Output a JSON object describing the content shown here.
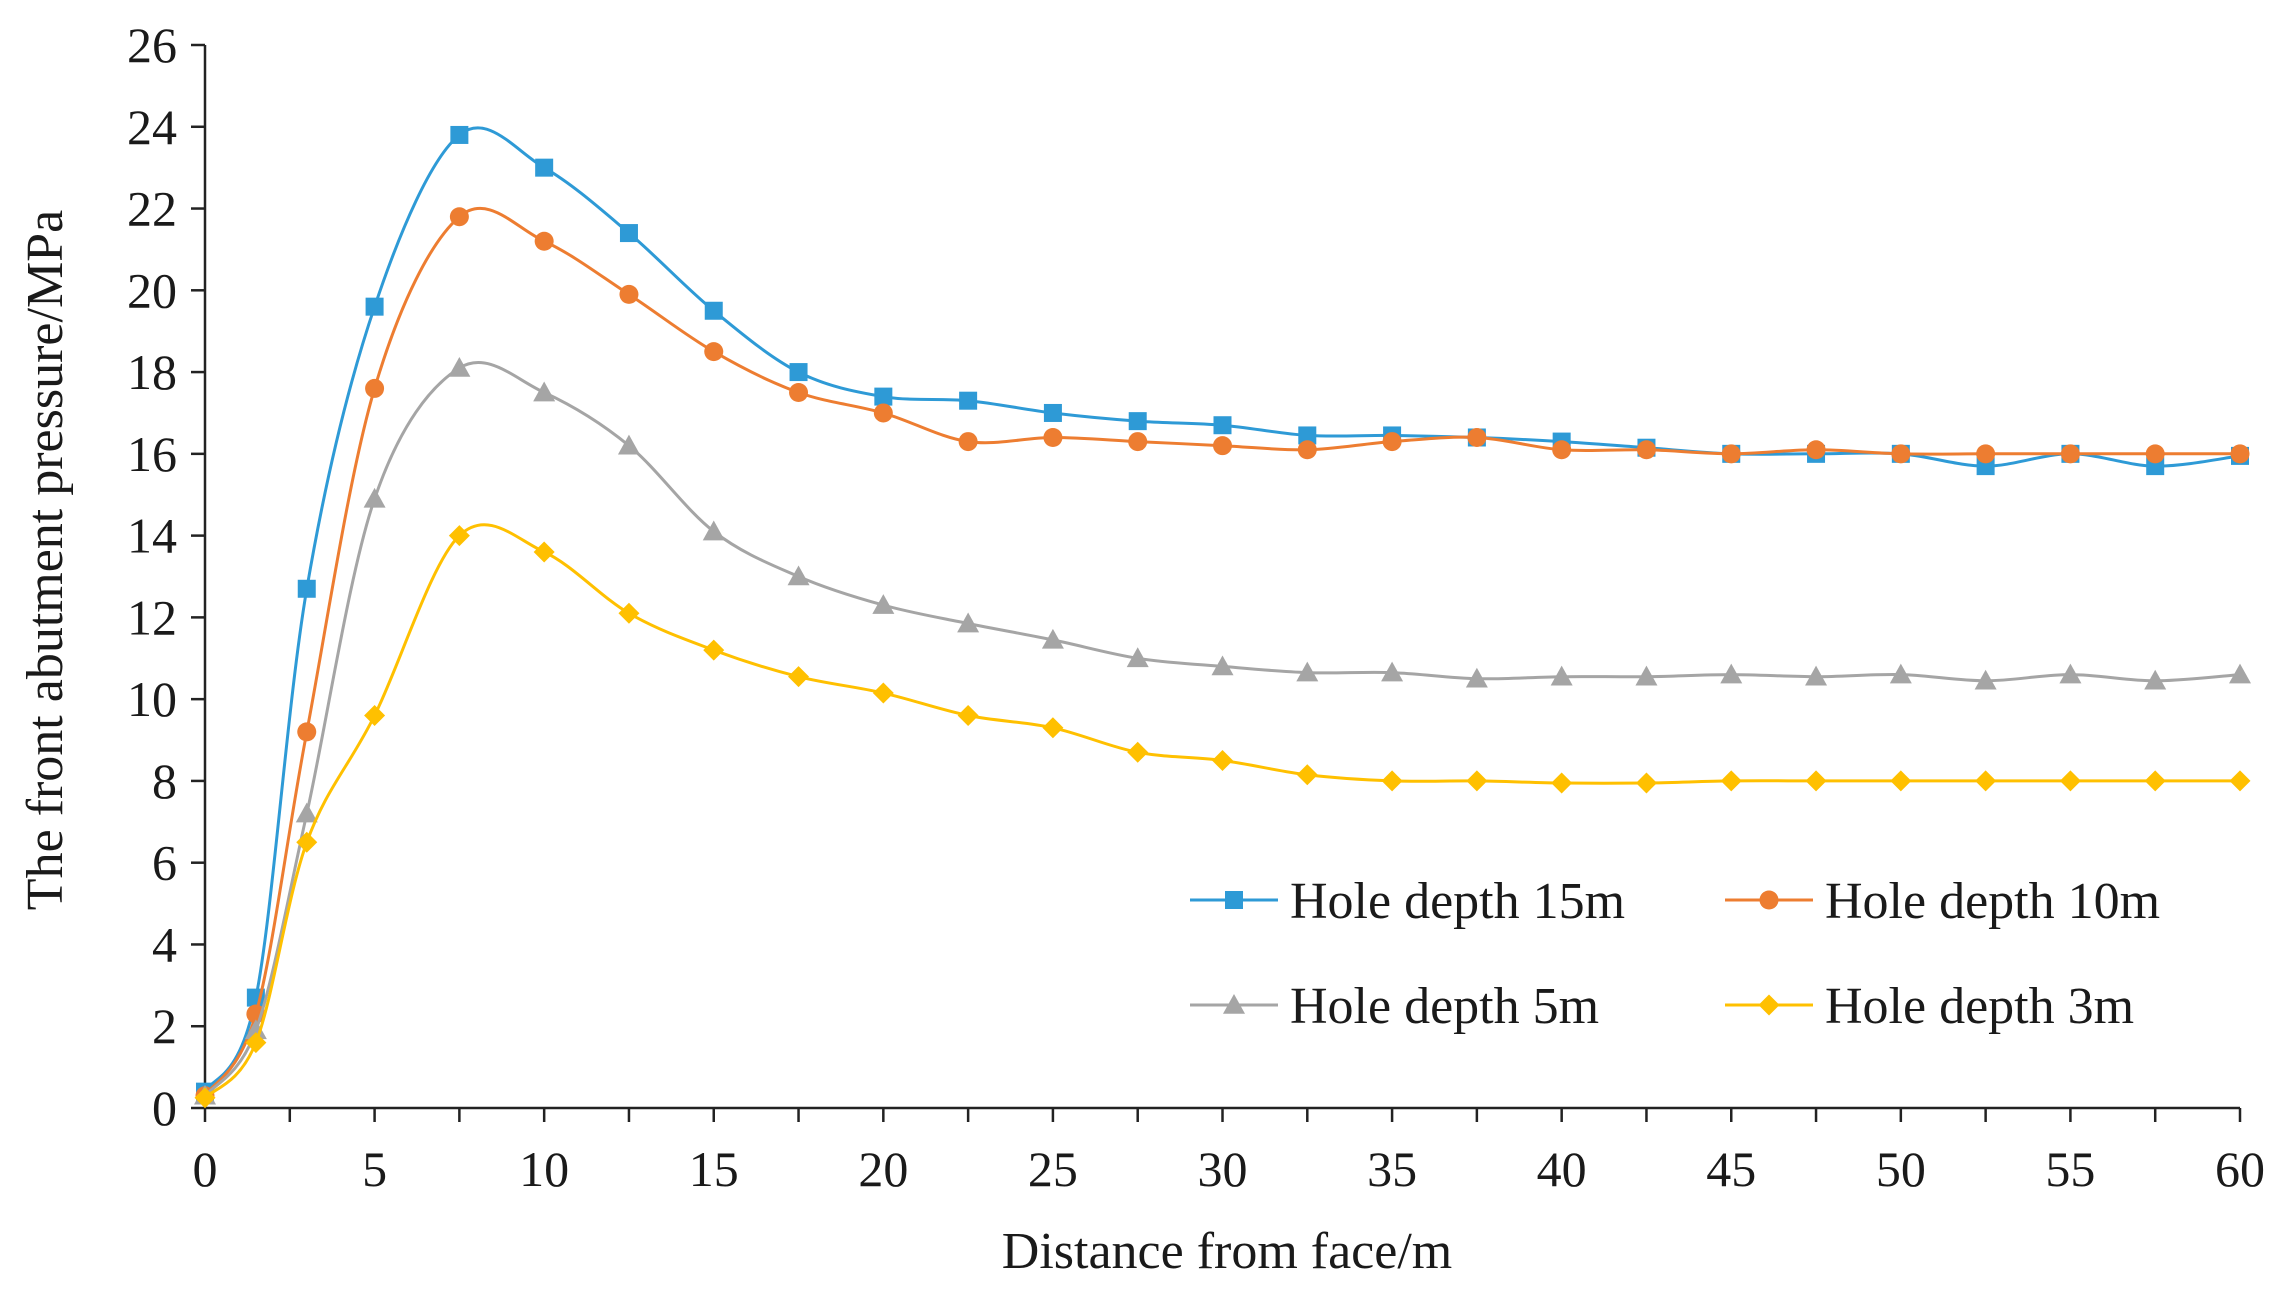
{
  "chart_data": {
    "type": "line",
    "title": "",
    "xlabel": "Distance from face/m",
    "ylabel": "The front abutment pressure/MPa",
    "xlim": [
      0,
      60
    ],
    "ylim": [
      0,
      26
    ],
    "xticks": [
      "0",
      "5",
      "10",
      "15",
      "20",
      "25",
      "30",
      "35",
      "40",
      "45",
      "50",
      "55",
      "60"
    ],
    "yticks": [
      "0",
      "2",
      "4",
      "6",
      "8",
      "10",
      "12",
      "14",
      "16",
      "18",
      "20",
      "22",
      "24",
      "26"
    ],
    "grid": false,
    "legend_position": "bottom-right",
    "series": [
      {
        "name": "Hole depth 15m",
        "color": "#2E9AD6",
        "marker": "square",
        "x": [
          0,
          1.5,
          3,
          5,
          7.5,
          10,
          12.5,
          15,
          17.5,
          20,
          22.5,
          25,
          27.5,
          30,
          32.5,
          35,
          37.5,
          40,
          42.5,
          45,
          47.5,
          50,
          52.5,
          55,
          57.5,
          60
        ],
        "values": [
          0.4,
          2.7,
          12.7,
          19.6,
          23.8,
          23.0,
          21.4,
          19.5,
          18.0,
          17.4,
          17.3,
          17.0,
          16.8,
          16.7,
          16.45,
          16.45,
          16.4,
          16.3,
          16.15,
          16.0,
          16.0,
          16.0,
          15.7,
          16.0,
          15.7,
          15.95
        ]
      },
      {
        "name": "Hole depth 10m",
        "color": "#ED7D31",
        "marker": "circle",
        "x": [
          0,
          1.5,
          3,
          5,
          7.5,
          10,
          12.5,
          15,
          17.5,
          20,
          22.5,
          25,
          27.5,
          30,
          32.5,
          35,
          37.5,
          40,
          42.5,
          45,
          47.5,
          50,
          52.5,
          55,
          57.5,
          60
        ],
        "values": [
          0.3,
          2.3,
          9.2,
          17.6,
          21.8,
          21.2,
          19.9,
          18.5,
          17.5,
          17.0,
          16.3,
          16.4,
          16.3,
          16.2,
          16.1,
          16.3,
          16.4,
          16.1,
          16.1,
          16.0,
          16.1,
          16.0,
          16.0,
          16.0,
          16.0,
          16.0
        ]
      },
      {
        "name": "Hole depth 5m",
        "color": "#A5A5A5",
        "marker": "triangle",
        "x": [
          0,
          1.5,
          3,
          5,
          7.5,
          10,
          12.5,
          15,
          17.5,
          20,
          22.5,
          25,
          27.5,
          30,
          32.5,
          35,
          37.5,
          40,
          42.5,
          45,
          47.5,
          50,
          52.5,
          55,
          57.5,
          60
        ],
        "values": [
          0.3,
          1.9,
          7.2,
          14.9,
          18.1,
          17.5,
          16.2,
          14.1,
          13.0,
          12.3,
          11.85,
          11.45,
          11.0,
          10.8,
          10.65,
          10.65,
          10.5,
          10.55,
          10.55,
          10.6,
          10.55,
          10.6,
          10.45,
          10.6,
          10.45,
          10.6
        ]
      },
      {
        "name": "Hole depth 3m",
        "color": "#FFC000",
        "marker": "diamond",
        "x": [
          0,
          1.5,
          3,
          5,
          7.5,
          10,
          12.5,
          15,
          17.5,
          20,
          22.5,
          25,
          27.5,
          30,
          32.5,
          35,
          37.5,
          40,
          42.5,
          45,
          47.5,
          50,
          52.5,
          55,
          57.5,
          60
        ],
        "values": [
          0.25,
          1.6,
          6.5,
          9.6,
          14.0,
          13.6,
          12.1,
          11.2,
          10.55,
          10.15,
          9.6,
          9.3,
          8.7,
          8.5,
          8.15,
          8.0,
          8.0,
          7.95,
          7.95,
          8.0,
          8.0,
          8.0,
          8.0,
          8.0,
          8.0,
          8.0
        ]
      }
    ]
  }
}
